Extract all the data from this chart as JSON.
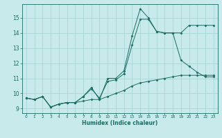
{
  "xlabel": "Humidex (Indice chaleur)",
  "bg_color": "#c8eaea",
  "grid_color": "#aad4d4",
  "line_color": "#1a6b60",
  "xlim": [
    -0.5,
    23.5
  ],
  "ylim": [
    8.7,
    15.9
  ],
  "yticks": [
    9,
    10,
    11,
    12,
    13,
    14,
    15
  ],
  "xticks": [
    0,
    1,
    2,
    3,
    4,
    5,
    6,
    7,
    8,
    9,
    10,
    11,
    12,
    13,
    14,
    15,
    16,
    17,
    18,
    19,
    20,
    21,
    22,
    23
  ],
  "line1_x": [
    0,
    1,
    2,
    3,
    4,
    5,
    6,
    7,
    8,
    9,
    10,
    11,
    12,
    13,
    14,
    15,
    16,
    17,
    18,
    19,
    20,
    21,
    22,
    23
  ],
  "line1_y": [
    9.7,
    9.6,
    9.8,
    9.1,
    9.3,
    9.4,
    9.4,
    9.8,
    10.4,
    9.6,
    11.0,
    11.0,
    11.5,
    13.8,
    15.6,
    15.0,
    14.1,
    14.0,
    14.0,
    14.0,
    14.5,
    14.5,
    14.5,
    14.5
  ],
  "line2_x": [
    0,
    1,
    2,
    3,
    4,
    5,
    6,
    7,
    8,
    9,
    10,
    11,
    12,
    13,
    14,
    15,
    16,
    17,
    18,
    19,
    20,
    21,
    22,
    23
  ],
  "line2_y": [
    9.7,
    9.6,
    9.8,
    9.1,
    9.3,
    9.4,
    9.4,
    9.8,
    10.3,
    9.7,
    10.8,
    10.9,
    11.3,
    13.2,
    14.9,
    14.9,
    14.1,
    14.0,
    14.0,
    12.2,
    11.8,
    11.4,
    11.1,
    11.1
  ],
  "line3_x": [
    0,
    1,
    2,
    3,
    4,
    5,
    6,
    7,
    8,
    9,
    10,
    11,
    12,
    13,
    14,
    15,
    16,
    17,
    18,
    19,
    20,
    21,
    22,
    23
  ],
  "line3_y": [
    9.7,
    9.6,
    9.8,
    9.1,
    9.3,
    9.4,
    9.4,
    9.5,
    9.6,
    9.6,
    9.8,
    10.0,
    10.2,
    10.5,
    10.7,
    10.8,
    10.9,
    11.0,
    11.1,
    11.2,
    11.2,
    11.2,
    11.2,
    11.2
  ]
}
